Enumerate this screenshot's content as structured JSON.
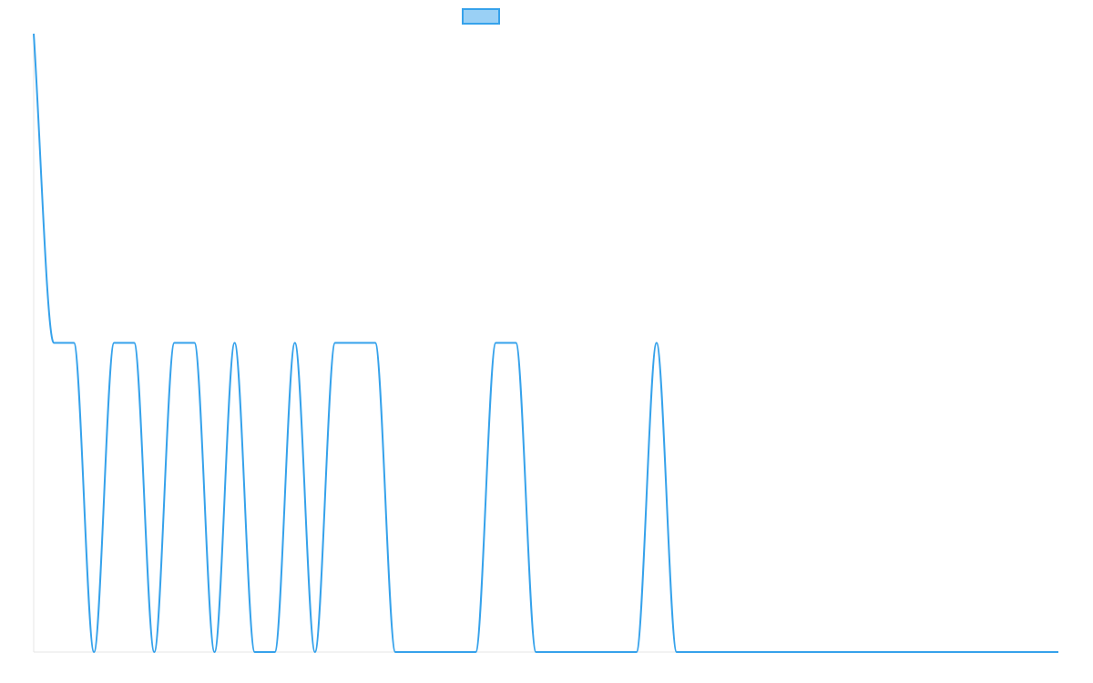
{
  "chart_data": {
    "type": "line",
    "title": "",
    "xlabel": "",
    "ylabel": "",
    "grid": false,
    "legend": {
      "position": "top-center",
      "entries": [
        {
          "label": "",
          "swatch_color": "#9ad0f5",
          "border_color": "#36a2eb"
        }
      ]
    },
    "xlim": [
      0,
      51
    ],
    "ylim": [
      0,
      2
    ],
    "series": [
      {
        "name": "",
        "color": "#36a2eb",
        "x": [
          0,
          1,
          2,
          3,
          4,
          5,
          6,
          7,
          8,
          9,
          10,
          11,
          12,
          13,
          14,
          15,
          16,
          17,
          18,
          19,
          20,
          21,
          22,
          23,
          24,
          25,
          26,
          27,
          28,
          29,
          30,
          31,
          32,
          33,
          34,
          35,
          36,
          37,
          38,
          39,
          40,
          41,
          42,
          43,
          44,
          45,
          46,
          47,
          48,
          49,
          50,
          51
        ],
        "values": [
          2,
          1,
          1,
          0,
          1,
          1,
          0,
          1,
          1,
          0,
          1,
          0,
          0,
          1,
          0,
          1,
          1,
          1,
          0,
          0,
          0,
          0,
          0,
          1,
          1,
          0,
          0,
          0,
          0,
          0,
          0,
          1,
          0,
          0,
          0,
          0,
          0,
          0,
          0,
          0,
          0,
          0,
          0,
          0,
          0,
          0,
          0,
          0,
          0,
          0,
          0,
          0
        ]
      }
    ]
  }
}
